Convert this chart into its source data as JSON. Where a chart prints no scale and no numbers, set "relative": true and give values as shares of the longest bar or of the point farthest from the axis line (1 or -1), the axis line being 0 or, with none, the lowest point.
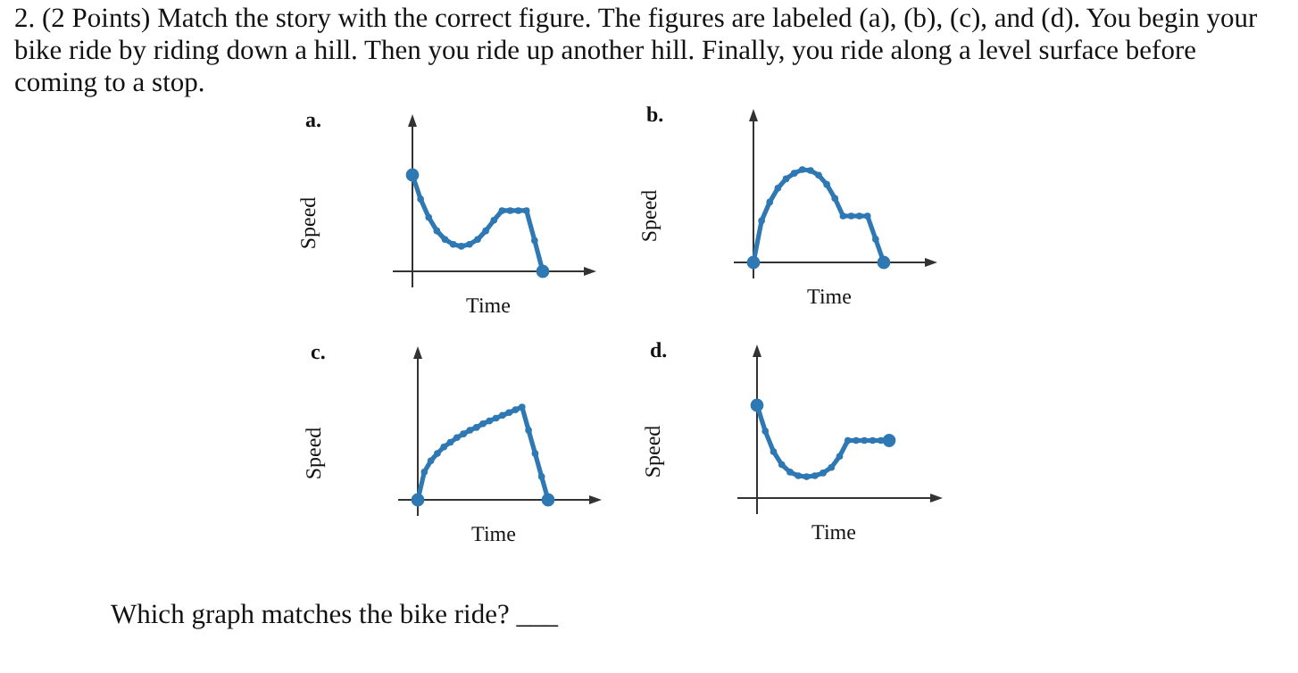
{
  "chart_data": [
    {
      "type": "line",
      "title": "a.",
      "xlabel": "Time",
      "ylabel": "Speed",
      "relative": true,
      "marker": "circle",
      "legend": false,
      "annotations": [
        "2. (2 Points) Match the story with the correct figure. The figures are labeled (a), (b), (c), and (d). You begin your bike ride by riding down a hill. Then you ride up another hill. Finally, you ride along a level surface before coming to a stop."
      ],
      "categories": [
        null,
        null,
        null,
        null,
        null,
        null,
        null,
        null,
        null,
        null,
        null,
        null,
        null,
        null,
        null,
        null,
        null
      ],
      "series": [
        {
          "color": "#2e78b4",
          "values": [
            1,
            0.75,
            0.56,
            0.42,
            0.33,
            0.28,
            0.26,
            0.28,
            0.33,
            0.42,
            0.53,
            0.63,
            0.63,
            0.63,
            0.63,
            0.32,
            0
          ]
        }
      ]
    },
    {
      "type": "line",
      "title": "b.",
      "xlabel": "Time",
      "ylabel": "Speed",
      "relative": true,
      "marker": "circle",
      "legend": false,
      "categories": [
        null,
        null,
        null,
        null,
        null,
        null,
        null,
        null,
        null,
        null,
        null,
        null,
        null,
        null,
        null,
        null,
        null
      ],
      "series": [
        {
          "color": "#2e78b4",
          "values": [
            0,
            0.45,
            0.65,
            0.8,
            0.9,
            0.96,
            1,
            0.99,
            0.94,
            0.84,
            0.69,
            0.5,
            0.5,
            0.5,
            0.5,
            0.25,
            0
          ]
        }
      ]
    },
    {
      "type": "line",
      "title": "c.",
      "xlabel": "Time",
      "ylabel": "Speed",
      "relative": true,
      "marker": "circle",
      "legend": false,
      "categories": [
        null,
        null,
        null,
        null,
        null,
        null,
        null,
        null,
        null,
        null,
        null,
        null,
        null,
        null,
        null,
        null,
        null,
        null,
        null,
        null,
        null
      ],
      "series": [
        {
          "color": "#2e78b4",
          "values": [
            0,
            0.3,
            0.42,
            0.5,
            0.57,
            0.62,
            0.67,
            0.71,
            0.75,
            0.78,
            0.82,
            0.85,
            0.88,
            0.91,
            0.94,
            0.97,
            1,
            0.75,
            0.5,
            0.25,
            0
          ]
        }
      ]
    },
    {
      "type": "line",
      "title": "d.",
      "xlabel": "Time",
      "ylabel": "Speed",
      "relative": true,
      "marker": "circle",
      "legend": false,
      "annotations": [
        "Which graph matches the bike ride? ___"
      ],
      "categories": [
        null,
        null,
        null,
        null,
        null,
        null,
        null,
        null,
        null,
        null,
        null,
        null,
        null,
        null,
        null,
        null,
        null
      ],
      "series": [
        {
          "color": "#2e78b4",
          "values": [
            1,
            0.72,
            0.5,
            0.36,
            0.28,
            0.24,
            0.23,
            0.24,
            0.27,
            0.33,
            0.45,
            0.62,
            0.62,
            0.62,
            0.62,
            0.62,
            0.62
          ]
        }
      ]
    }
  ]
}
